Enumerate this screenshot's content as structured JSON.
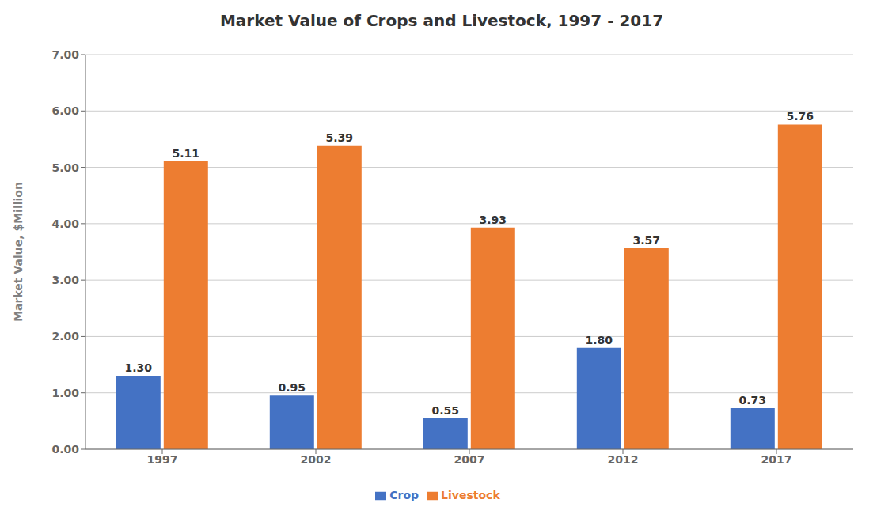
{
  "chart_data": {
    "type": "bar",
    "title": "Market Value of Crops and Livestock, 1997 - 2017",
    "ylabel": "Market Value, $Million",
    "categories": [
      "1997",
      "2002",
      "2007",
      "2012",
      "2017"
    ],
    "series": [
      {
        "name": "Crop",
        "color": "#4472C4",
        "values": [
          1.3,
          0.95,
          0.55,
          1.8,
          0.73
        ],
        "value_labels": [
          "1.30",
          "0.95",
          "0.55",
          "1.80",
          "0.73"
        ]
      },
      {
        "name": "Livestock",
        "color": "#ED7D31",
        "values": [
          5.11,
          5.39,
          3.93,
          3.57,
          5.76
        ],
        "value_labels": [
          "5.11",
          "5.39",
          "3.93",
          "3.57",
          "5.76"
        ]
      }
    ],
    "ylim": [
      0,
      7.0
    ],
    "yticks": [
      {
        "value": 0,
        "label": "0.00"
      },
      {
        "value": 1,
        "label": "1.00"
      },
      {
        "value": 2,
        "label": "2.00"
      },
      {
        "value": 3,
        "label": "3.00"
      },
      {
        "value": 4,
        "label": "4.00"
      },
      {
        "value": 5,
        "label": "5.00"
      },
      {
        "value": 6,
        "label": "6.00"
      },
      {
        "value": 7,
        "label": "7.00"
      }
    ],
    "grid": true,
    "legend": "bottom",
    "data_labels": true
  }
}
